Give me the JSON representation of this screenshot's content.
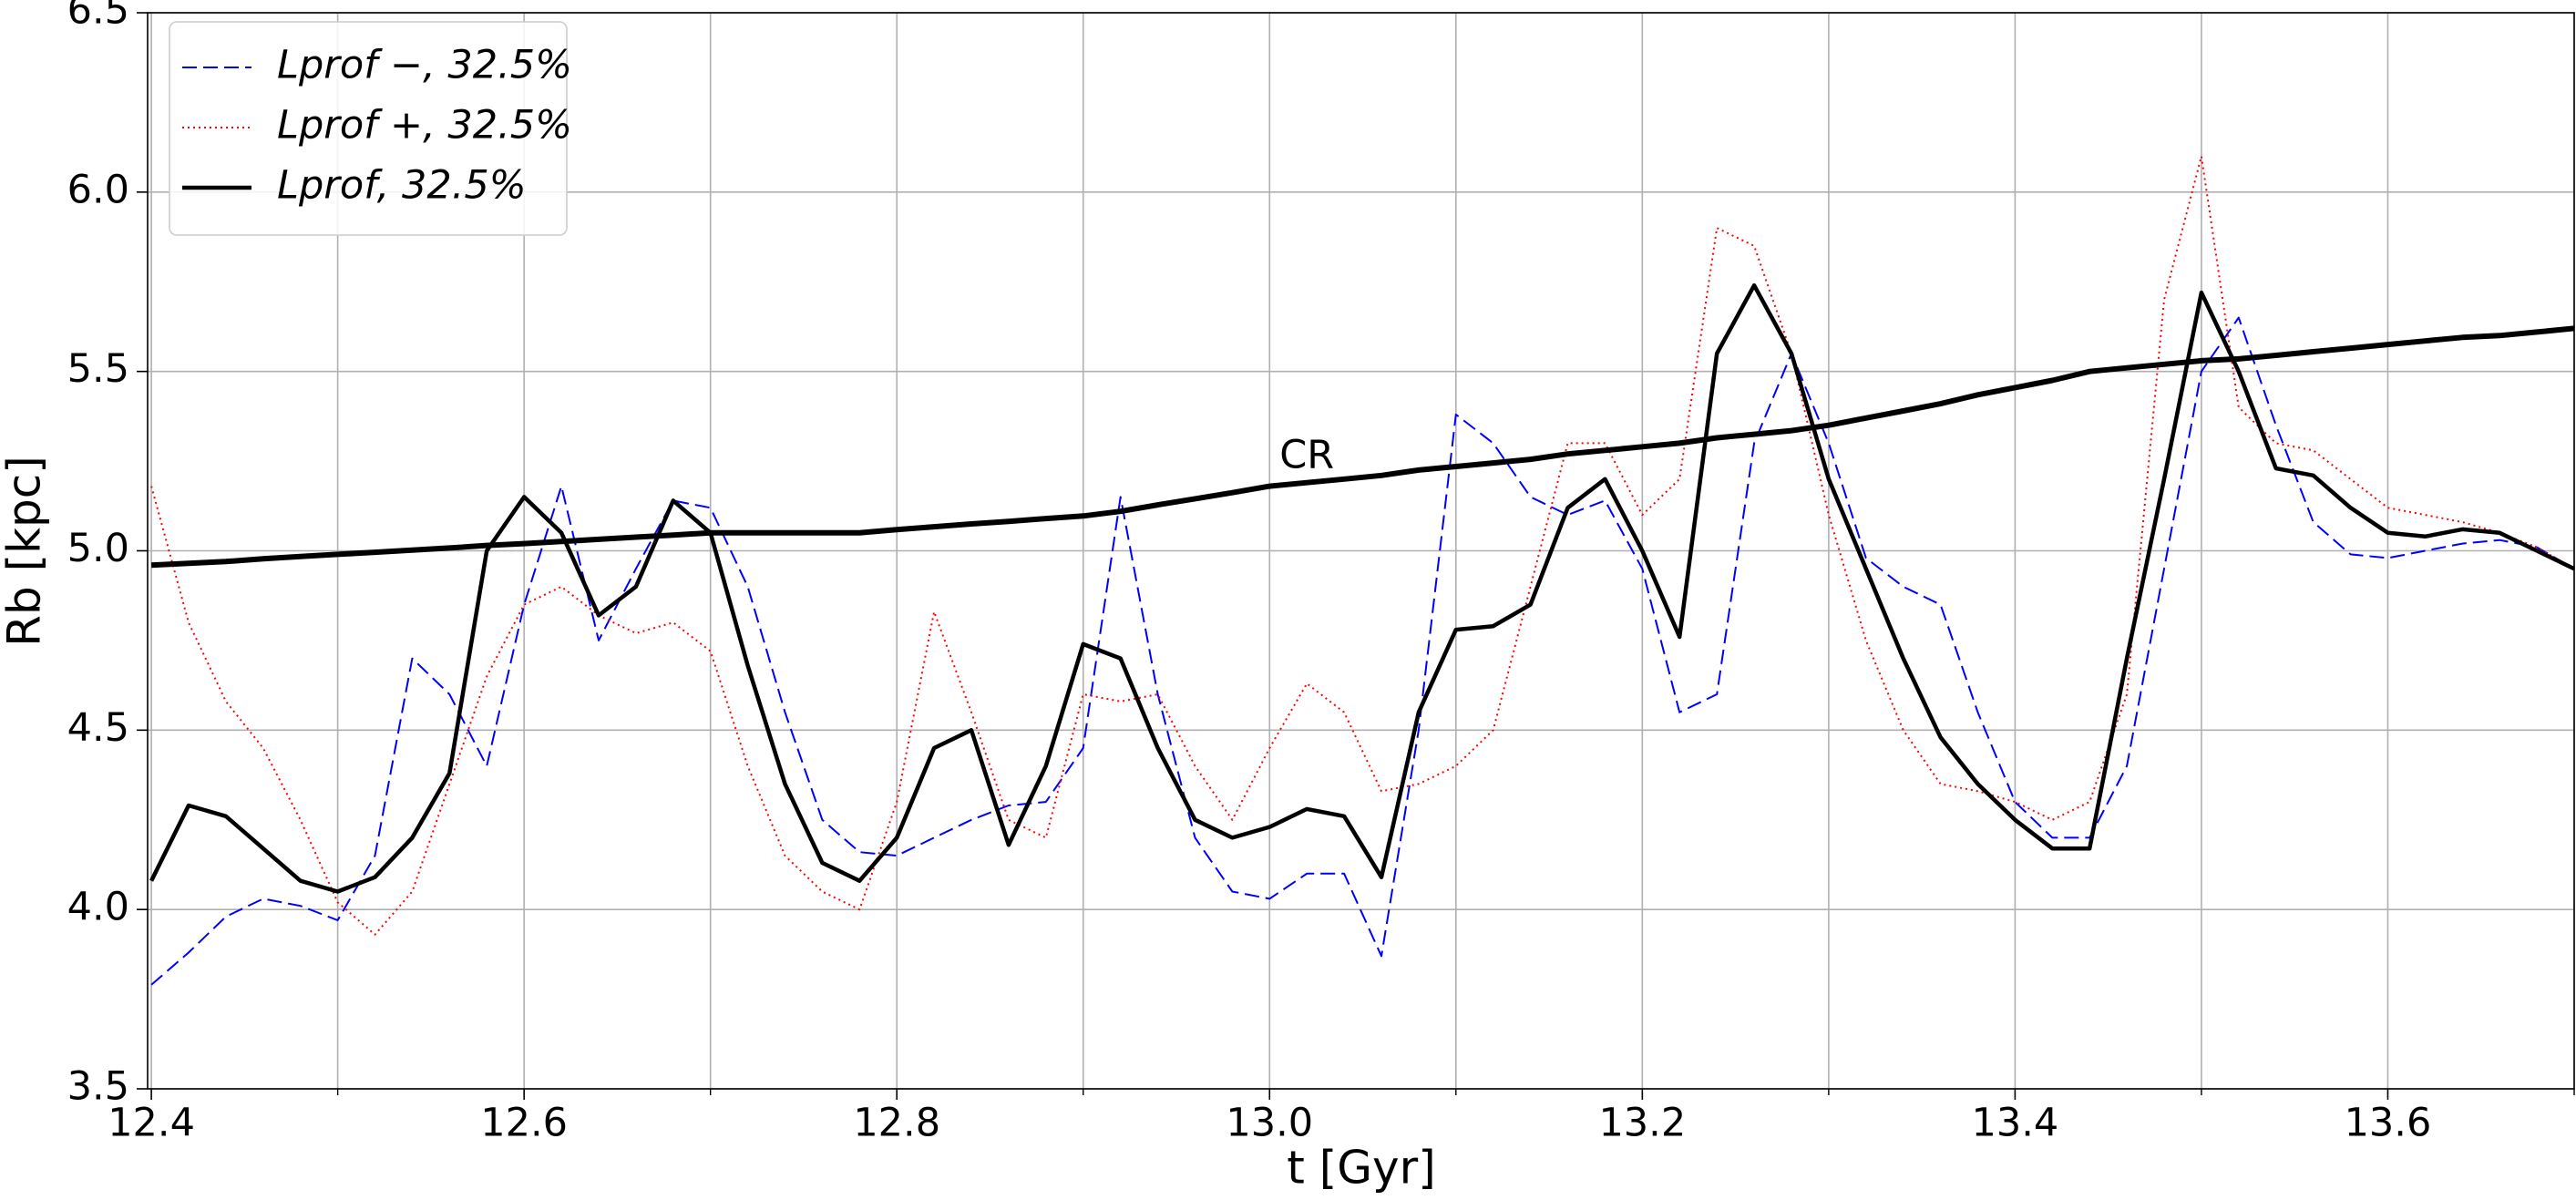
{
  "chart_data": {
    "type": "line",
    "xlabel": "t [Gyr]",
    "ylabel": "Rb [kpc]",
    "x": [
      12.4,
      12.42,
      12.44,
      12.46,
      12.48,
      12.5,
      12.52,
      12.54,
      12.56,
      12.58,
      12.6,
      12.62,
      12.64,
      12.66,
      12.68,
      12.7,
      12.72,
      12.74,
      12.76,
      12.78,
      12.8,
      12.82,
      12.84,
      12.86,
      12.88,
      12.9,
      12.92,
      12.94,
      12.96,
      12.98,
      13.0,
      13.02,
      13.04,
      13.06,
      13.08,
      13.1,
      13.12,
      13.14,
      13.16,
      13.18,
      13.2,
      13.22,
      13.24,
      13.26,
      13.28,
      13.3,
      13.32,
      13.34,
      13.36,
      13.38,
      13.4,
      13.42,
      13.44,
      13.46,
      13.48,
      13.5,
      13.52,
      13.54,
      13.56,
      13.58,
      13.6,
      13.62,
      13.64,
      13.66,
      13.68,
      13.7
    ],
    "series": [
      {
        "name": "Lprof −, 32.5%",
        "color": "#0000ff",
        "style": "dashed",
        "width": 2,
        "legend": true,
        "values": [
          3.79,
          3.88,
          3.98,
          4.03,
          4.01,
          3.97,
          4.15,
          4.7,
          4.6,
          4.4,
          4.85,
          5.18,
          4.75,
          4.95,
          5.14,
          5.12,
          4.9,
          4.55,
          4.25,
          4.16,
          4.15,
          4.2,
          4.25,
          4.29,
          4.3,
          4.45,
          5.15,
          4.6,
          4.2,
          4.05,
          4.03,
          4.1,
          4.1,
          3.87,
          4.5,
          5.38,
          5.3,
          5.15,
          5.1,
          5.14,
          4.95,
          4.55,
          4.6,
          5.3,
          5.55,
          5.3,
          4.98,
          4.9,
          4.85,
          4.55,
          4.3,
          4.2,
          4.2,
          4.4,
          4.95,
          5.5,
          5.65,
          5.35,
          5.08,
          4.99,
          4.98,
          5.0,
          5.02,
          5.03,
          5.01,
          4.95
        ]
      },
      {
        "name": "Lprof +, 32.5%",
        "color": "#ff0000",
        "style": "dotted",
        "width": 2,
        "legend": true,
        "values": [
          5.18,
          4.8,
          4.58,
          4.45,
          4.25,
          4.02,
          3.93,
          4.05,
          4.35,
          4.65,
          4.85,
          4.9,
          4.82,
          4.77,
          4.8,
          4.72,
          4.4,
          4.15,
          4.05,
          4.0,
          4.3,
          4.83,
          4.55,
          4.25,
          4.2,
          4.6,
          4.58,
          4.6,
          4.4,
          4.25,
          4.45,
          4.63,
          4.55,
          4.33,
          4.35,
          4.4,
          4.5,
          4.9,
          5.3,
          5.3,
          5.1,
          5.2,
          5.9,
          5.85,
          5.55,
          5.1,
          4.75,
          4.5,
          4.35,
          4.33,
          4.3,
          4.25,
          4.3,
          4.6,
          5.7,
          6.1,
          5.4,
          5.3,
          5.28,
          5.2,
          5.12,
          5.1,
          5.08,
          5.05,
          5.01,
          4.95
        ]
      },
      {
        "name": "Lprof, 32.5%",
        "color": "#000000",
        "style": "solid",
        "width": 4.5,
        "legend": true,
        "values": [
          4.08,
          4.29,
          4.26,
          4.17,
          4.08,
          4.05,
          4.09,
          4.2,
          4.38,
          5.0,
          5.15,
          5.05,
          4.82,
          4.9,
          5.14,
          5.05,
          4.68,
          4.35,
          4.13,
          4.08,
          4.2,
          4.45,
          4.5,
          4.18,
          4.4,
          4.74,
          4.7,
          4.45,
          4.25,
          4.2,
          4.23,
          4.28,
          4.26,
          4.09,
          4.55,
          4.78,
          4.79,
          4.85,
          5.12,
          5.2,
          5.0,
          4.76,
          5.55,
          5.74,
          5.55,
          5.2,
          4.95,
          4.7,
          4.48,
          4.35,
          4.25,
          4.17,
          4.17,
          4.7,
          5.2,
          5.72,
          5.5,
          5.23,
          5.21,
          5.12,
          5.05,
          5.04,
          5.06,
          5.05,
          5.0,
          4.95
        ]
      },
      {
        "name": "CR",
        "color": "#000000",
        "style": "solid",
        "width": 6,
        "legend": false,
        "values": [
          4.96,
          4.965,
          4.97,
          4.978,
          4.984,
          4.99,
          4.996,
          5.002,
          5.008,
          5.015,
          5.02,
          5.026,
          5.032,
          5.038,
          5.044,
          5.05,
          5.05,
          5.05,
          5.05,
          5.05,
          5.059,
          5.067,
          5.075,
          5.082,
          5.09,
          5.097,
          5.11,
          5.128,
          5.145,
          5.162,
          5.18,
          5.19,
          5.2,
          5.21,
          5.225,
          5.235,
          5.245,
          5.255,
          5.27,
          5.28,
          5.29,
          5.3,
          5.315,
          5.325,
          5.335,
          5.35,
          5.37,
          5.39,
          5.41,
          5.435,
          5.455,
          5.475,
          5.5,
          5.51,
          5.52,
          5.53,
          5.535,
          5.545,
          5.555,
          5.565,
          5.575,
          5.585,
          5.595,
          5.6,
          5.61,
          5.62
        ]
      }
    ],
    "annotations": [
      {
        "text": "CR",
        "x": 13.02,
        "y": 5.26
      }
    ],
    "xlim": [
      12.398,
      13.7
    ],
    "ylim": [
      3.5,
      6.5
    ],
    "xticks": [
      12.4,
      12.6,
      12.8,
      {
        "value": 13,
        "label": "13.0"
      },
      13.2,
      13.4,
      13.6
    ],
    "xminorticks": [
      12.5,
      12.7,
      12.9,
      13.1,
      13.3,
      13.5,
      13.7
    ],
    "yticks": [
      3.5,
      {
        "value": 4,
        "label": "4.0"
      },
      4.5,
      {
        "value": 5,
        "label": "5.0"
      },
      5.5,
      {
        "value": 6,
        "label": "6.0"
      },
      6.5
    ],
    "grid": true,
    "legend_position": "upper left"
  }
}
